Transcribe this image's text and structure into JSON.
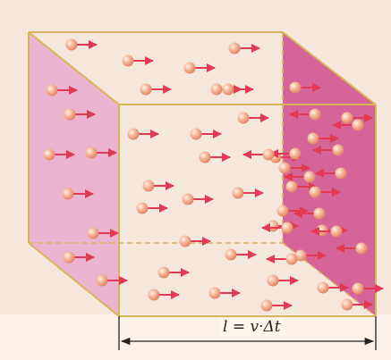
{
  "dimension": {
    "label": "l = v·Δt"
  },
  "particles": {
    "right_moving_count": 44,
    "left_moving_count": 12
  },
  "colors": {
    "background": "#f6e7dd",
    "box_edge": "#d9b45a",
    "left_face": "#e8a9cc",
    "right_face": "#d0528f",
    "arrow": "#e23a55",
    "particle": "#f0a587"
  }
}
